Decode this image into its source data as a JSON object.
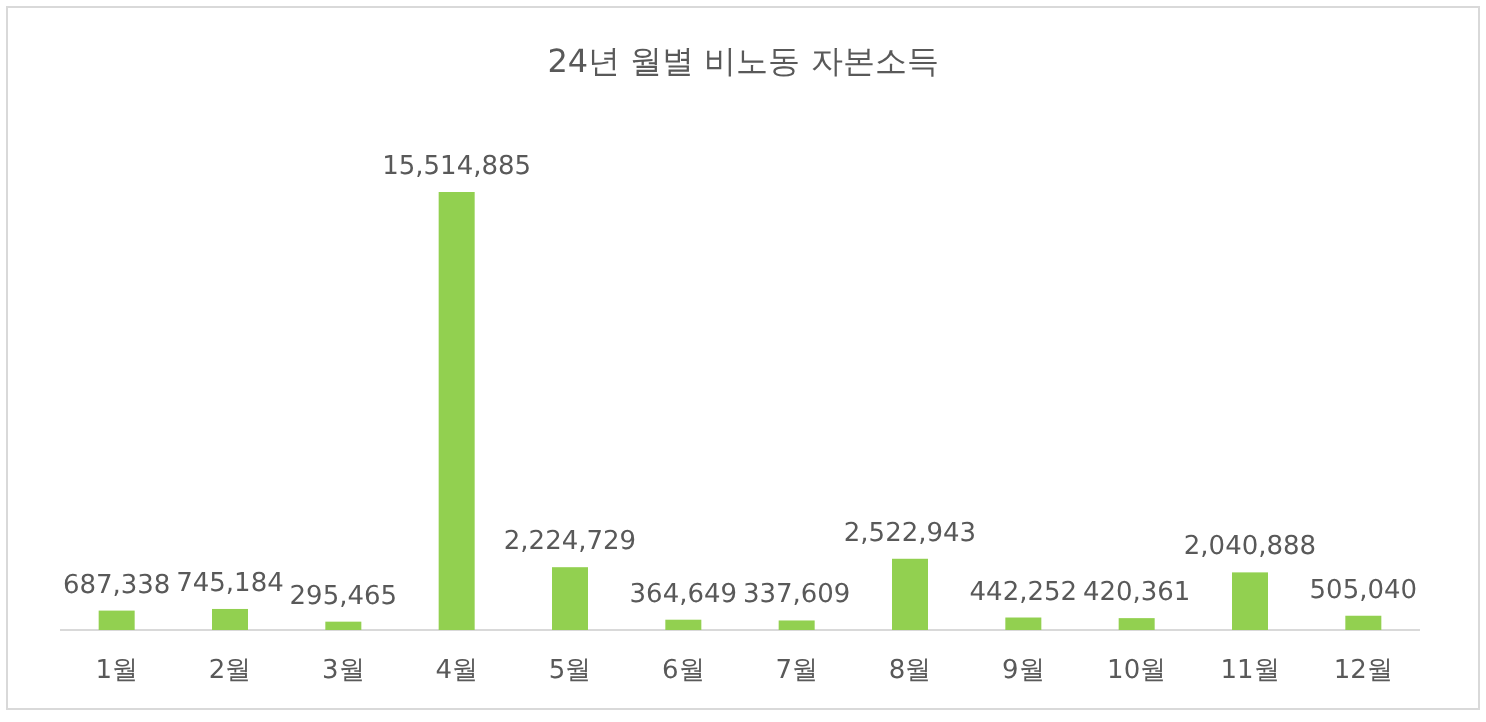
{
  "chart_data": {
    "type": "bar",
    "title": "24년 월별 비노동 자본소득",
    "categories": [
      "1월",
      "2월",
      "3월",
      "4월",
      "5월",
      "6월",
      "7월",
      "8월",
      "9월",
      "10월",
      "11월",
      "12월"
    ],
    "values": [
      687338,
      745184,
      295465,
      15514885,
      2224729,
      364649,
      337609,
      2522943,
      442252,
      420361,
      2040888,
      505040
    ],
    "value_labels": [
      "687,338",
      "745,184",
      "295,465",
      "15,514,885",
      "2,224,729",
      "364,649",
      "337,609",
      "2,522,943",
      "442,252",
      "420,361",
      "2,040,888",
      "505,040"
    ],
    "color": "#92d050"
  }
}
